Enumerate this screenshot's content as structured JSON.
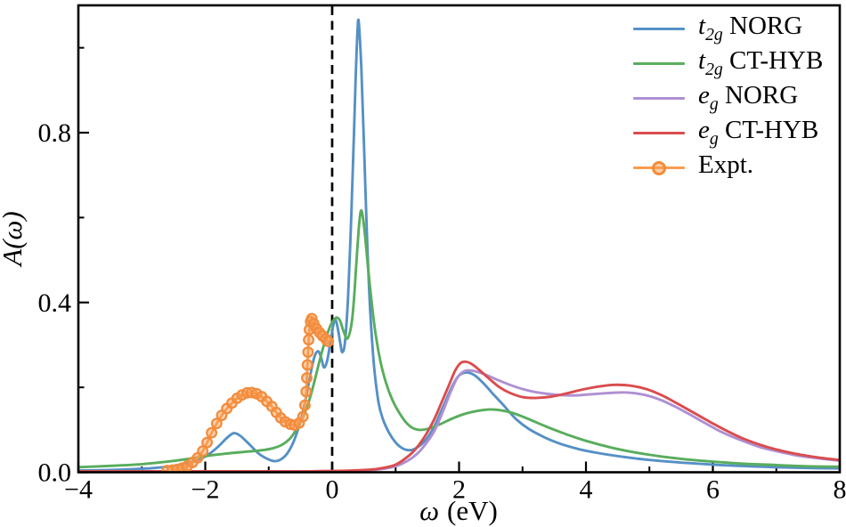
{
  "figure": {
    "title": "",
    "background": "#ffffff",
    "axis_color": "#000000"
  },
  "legend": {
    "position": "upper right",
    "items": [
      {
        "prefix": "t",
        "sub": "2g",
        "rest": " NORG",
        "full": "t2g NORG"
      },
      {
        "prefix": "t",
        "sub": "2g",
        "rest": " CT-HYB",
        "full": "t2g CT-HYB"
      },
      {
        "prefix": "e",
        "sub": "g",
        "rest": " NORG",
        "full": "eg NORG"
      },
      {
        "prefix": "e",
        "sub": "g",
        "rest": " CT-HYB",
        "full": "eg CT-HYB"
      },
      {
        "prefix": "Expt.",
        "sub": "",
        "rest": "",
        "full": "Expt."
      }
    ]
  },
  "chart_data": {
    "type": "line",
    "title": "",
    "xlabel": "ω (eV)",
    "xlabel_parts": {
      "symbol": "ω",
      "unit": "(eV)"
    },
    "ylabel": "A(ω)",
    "xlim": [
      -4,
      8
    ],
    "ylim": [
      0,
      1.1
    ],
    "grid": false,
    "legend_position": "upper right",
    "x_major_ticks": [
      -4,
      -2,
      0,
      2,
      4,
      6,
      8
    ],
    "x_major_labels": [
      "−4",
      "−2",
      "0",
      "2",
      "4",
      "6",
      "8"
    ],
    "x_minor_ticks": [
      -3,
      -1,
      1,
      3,
      5,
      7
    ],
    "y_major_ticks": [
      0,
      0.4,
      0.8
    ],
    "y_major_labels": [
      "0.0",
      "0.4",
      "0.8"
    ],
    "y_minor_ticks": [
      0.2,
      0.6,
      1.0
    ],
    "annotations": [
      {
        "type": "vline",
        "x": 0,
        "style": "dashed",
        "color": "#000000"
      }
    ],
    "series": [
      {
        "id": "t2g-norg",
        "name": "t2g NORG",
        "color": "#5590C5",
        "style": "line",
        "points": [
          [
            -4,
            0.004
          ],
          [
            -3.6,
            0.005
          ],
          [
            -3.2,
            0.007
          ],
          [
            -2.8,
            0.01
          ],
          [
            -2.5,
            0.015
          ],
          [
            -2.3,
            0.021
          ],
          [
            -2.1,
            0.03
          ],
          [
            -1.95,
            0.042
          ],
          [
            -1.8,
            0.06
          ],
          [
            -1.65,
            0.082
          ],
          [
            -1.55,
            0.092
          ],
          [
            -1.45,
            0.086
          ],
          [
            -1.3,
            0.065
          ],
          [
            -1.15,
            0.043
          ],
          [
            -1.0,
            0.03
          ],
          [
            -0.9,
            0.026
          ],
          [
            -0.8,
            0.031
          ],
          [
            -0.7,
            0.046
          ],
          [
            -0.6,
            0.075
          ],
          [
            -0.5,
            0.12
          ],
          [
            -0.42,
            0.17
          ],
          [
            -0.35,
            0.225
          ],
          [
            -0.28,
            0.272
          ],
          [
            -0.22,
            0.285
          ],
          [
            -0.17,
            0.268
          ],
          [
            -0.13,
            0.247
          ],
          [
            -0.08,
            0.262
          ],
          [
            -0.03,
            0.305
          ],
          [
            0.02,
            0.348
          ],
          [
            0.05,
            0.36
          ],
          [
            0.09,
            0.338
          ],
          [
            0.13,
            0.302
          ],
          [
            0.16,
            0.283
          ],
          [
            0.2,
            0.305
          ],
          [
            0.25,
            0.41
          ],
          [
            0.3,
            0.6
          ],
          [
            0.34,
            0.78
          ],
          [
            0.37,
            0.93
          ],
          [
            0.39,
            1.01
          ],
          [
            0.41,
            1.065
          ],
          [
            0.43,
            1.04
          ],
          [
            0.46,
            0.95
          ],
          [
            0.5,
            0.78
          ],
          [
            0.55,
            0.55
          ],
          [
            0.6,
            0.38
          ],
          [
            0.66,
            0.25
          ],
          [
            0.73,
            0.165
          ],
          [
            0.8,
            0.125
          ],
          [
            0.9,
            0.092
          ],
          [
            1.0,
            0.07
          ],
          [
            1.1,
            0.057
          ],
          [
            1.2,
            0.052
          ],
          [
            1.3,
            0.055
          ],
          [
            1.45,
            0.072
          ],
          [
            1.6,
            0.105
          ],
          [
            1.75,
            0.155
          ],
          [
            1.9,
            0.205
          ],
          [
            2.0,
            0.228
          ],
          [
            2.12,
            0.235
          ],
          [
            2.25,
            0.228
          ],
          [
            2.4,
            0.207
          ],
          [
            2.55,
            0.182
          ],
          [
            2.7,
            0.158
          ],
          [
            2.9,
            0.125
          ],
          [
            3.1,
            0.102
          ],
          [
            3.35,
            0.082
          ],
          [
            3.6,
            0.067
          ],
          [
            3.9,
            0.054
          ],
          [
            4.2,
            0.045
          ],
          [
            4.6,
            0.036
          ],
          [
            5.0,
            0.029
          ],
          [
            5.4,
            0.024
          ],
          [
            5.9,
            0.019
          ],
          [
            6.4,
            0.015
          ],
          [
            7.0,
            0.012
          ],
          [
            7.5,
            0.01
          ],
          [
            8.0,
            0.009
          ]
        ]
      },
      {
        "id": "t2g-cthyb",
        "name": "t2g CT-HYB",
        "color": "#58AD5C",
        "style": "line",
        "points": [
          [
            -4,
            0.012
          ],
          [
            -3.5,
            0.015
          ],
          [
            -3.0,
            0.019
          ],
          [
            -2.6,
            0.025
          ],
          [
            -2.2,
            0.033
          ],
          [
            -1.9,
            0.04
          ],
          [
            -1.6,
            0.045
          ],
          [
            -1.3,
            0.049
          ],
          [
            -1.1,
            0.052
          ],
          [
            -0.95,
            0.056
          ],
          [
            -0.8,
            0.064
          ],
          [
            -0.65,
            0.082
          ],
          [
            -0.5,
            0.118
          ],
          [
            -0.4,
            0.152
          ],
          [
            -0.3,
            0.202
          ],
          [
            -0.2,
            0.262
          ],
          [
            -0.1,
            0.315
          ],
          [
            -0.02,
            0.348
          ],
          [
            0.06,
            0.364
          ],
          [
            0.12,
            0.358
          ],
          [
            0.18,
            0.332
          ],
          [
            0.24,
            0.315
          ],
          [
            0.3,
            0.345
          ],
          [
            0.34,
            0.4
          ],
          [
            0.38,
            0.49
          ],
          [
            0.42,
            0.575
          ],
          [
            0.45,
            0.615
          ],
          [
            0.48,
            0.605
          ],
          [
            0.52,
            0.555
          ],
          [
            0.57,
            0.475
          ],
          [
            0.63,
            0.39
          ],
          [
            0.69,
            0.32
          ],
          [
            0.76,
            0.262
          ],
          [
            0.85,
            0.21
          ],
          [
            0.95,
            0.17
          ],
          [
            1.05,
            0.142
          ],
          [
            1.15,
            0.12
          ],
          [
            1.25,
            0.106
          ],
          [
            1.36,
            0.1
          ],
          [
            1.5,
            0.102
          ],
          [
            1.7,
            0.113
          ],
          [
            1.9,
            0.127
          ],
          [
            2.1,
            0.138
          ],
          [
            2.3,
            0.145
          ],
          [
            2.5,
            0.148
          ],
          [
            2.7,
            0.145
          ],
          [
            2.9,
            0.137
          ],
          [
            3.1,
            0.125
          ],
          [
            3.4,
            0.106
          ],
          [
            3.7,
            0.089
          ],
          [
            4.0,
            0.074
          ],
          [
            4.4,
            0.058
          ],
          [
            4.8,
            0.046
          ],
          [
            5.2,
            0.037
          ],
          [
            5.6,
            0.03
          ],
          [
            6.0,
            0.025
          ],
          [
            6.5,
            0.02
          ],
          [
            7.0,
            0.017
          ],
          [
            7.5,
            0.014
          ],
          [
            8.0,
            0.013
          ]
        ]
      },
      {
        "id": "eg-norg",
        "name": "eg NORG",
        "color": "#AE90D2",
        "style": "line",
        "points": [
          [
            -4,
            0.002
          ],
          [
            -3,
            0.002
          ],
          [
            -2,
            0.002
          ],
          [
            -1,
            0.002
          ],
          [
            -0.5,
            0.002
          ],
          [
            0,
            0.003
          ],
          [
            0.3,
            0.003
          ],
          [
            0.6,
            0.005
          ],
          [
            0.8,
            0.008
          ],
          [
            1.0,
            0.014
          ],
          [
            1.2,
            0.028
          ],
          [
            1.35,
            0.045
          ],
          [
            1.5,
            0.072
          ],
          [
            1.62,
            0.1
          ],
          [
            1.75,
            0.145
          ],
          [
            1.87,
            0.19
          ],
          [
            1.97,
            0.222
          ],
          [
            2.07,
            0.237
          ],
          [
            2.16,
            0.24
          ],
          [
            2.3,
            0.236
          ],
          [
            2.45,
            0.228
          ],
          [
            2.6,
            0.218
          ],
          [
            2.8,
            0.206
          ],
          [
            3.0,
            0.196
          ],
          [
            3.2,
            0.189
          ],
          [
            3.5,
            0.183
          ],
          [
            3.8,
            0.181
          ],
          [
            4.1,
            0.184
          ],
          [
            4.4,
            0.187
          ],
          [
            4.65,
            0.188
          ],
          [
            4.9,
            0.183
          ],
          [
            5.15,
            0.172
          ],
          [
            5.4,
            0.155
          ],
          [
            5.65,
            0.135
          ],
          [
            5.9,
            0.114
          ],
          [
            6.15,
            0.094
          ],
          [
            6.45,
            0.075
          ],
          [
            6.75,
            0.059
          ],
          [
            7.05,
            0.048
          ],
          [
            7.35,
            0.039
          ],
          [
            7.65,
            0.033
          ],
          [
            8.0,
            0.027
          ]
        ]
      },
      {
        "id": "eg-cthyb",
        "name": "eg CT-HYB",
        "color": "#DB4C4E",
        "style": "line",
        "points": [
          [
            -4,
            0.002
          ],
          [
            -3,
            0.002
          ],
          [
            -2,
            0.002
          ],
          [
            -1,
            0.002
          ],
          [
            -0.5,
            0.002
          ],
          [
            0,
            0.003
          ],
          [
            0.3,
            0.004
          ],
          [
            0.6,
            0.006
          ],
          [
            0.8,
            0.01
          ],
          [
            1.0,
            0.018
          ],
          [
            1.15,
            0.032
          ],
          [
            1.3,
            0.052
          ],
          [
            1.45,
            0.082
          ],
          [
            1.6,
            0.122
          ],
          [
            1.72,
            0.163
          ],
          [
            1.84,
            0.205
          ],
          [
            1.94,
            0.24
          ],
          [
            2.03,
            0.258
          ],
          [
            2.12,
            0.26
          ],
          [
            2.22,
            0.253
          ],
          [
            2.35,
            0.237
          ],
          [
            2.5,
            0.217
          ],
          [
            2.65,
            0.199
          ],
          [
            2.8,
            0.187
          ],
          [
            3.0,
            0.177
          ],
          [
            3.2,
            0.175
          ],
          [
            3.45,
            0.178
          ],
          [
            3.7,
            0.186
          ],
          [
            3.95,
            0.195
          ],
          [
            4.2,
            0.202
          ],
          [
            4.45,
            0.206
          ],
          [
            4.7,
            0.204
          ],
          [
            4.95,
            0.196
          ],
          [
            5.2,
            0.181
          ],
          [
            5.45,
            0.161
          ],
          [
            5.7,
            0.14
          ],
          [
            5.95,
            0.119
          ],
          [
            6.2,
            0.099
          ],
          [
            6.5,
            0.078
          ],
          [
            6.8,
            0.062
          ],
          [
            7.1,
            0.05
          ],
          [
            7.4,
            0.041
          ],
          [
            7.7,
            0.034
          ],
          [
            8.0,
            0.029
          ]
        ]
      },
      {
        "id": "expt",
        "name": "Expt.",
        "color": "#FA9C50",
        "marker_edge": "#F28C3C",
        "style": "line+markers",
        "marker": "circle",
        "points": [
          [
            -2.6,
            0.004
          ],
          [
            -2.52,
            0.005
          ],
          [
            -2.44,
            0.007
          ],
          [
            -2.36,
            0.01
          ],
          [
            -2.28,
            0.015
          ],
          [
            -2.2,
            0.023
          ],
          [
            -2.12,
            0.034
          ],
          [
            -2.04,
            0.05
          ],
          [
            -1.97,
            0.07
          ],
          [
            -1.9,
            0.093
          ],
          [
            -1.82,
            0.115
          ],
          [
            -1.74,
            0.134
          ],
          [
            -1.66,
            0.15
          ],
          [
            -1.58,
            0.163
          ],
          [
            -1.5,
            0.174
          ],
          [
            -1.42,
            0.182
          ],
          [
            -1.34,
            0.187
          ],
          [
            -1.27,
            0.188
          ],
          [
            -1.19,
            0.185
          ],
          [
            -1.11,
            0.178
          ],
          [
            -1.03,
            0.167
          ],
          [
            -0.95,
            0.155
          ],
          [
            -0.88,
            0.141
          ],
          [
            -0.81,
            0.128
          ],
          [
            -0.74,
            0.119
          ],
          [
            -0.66,
            0.113
          ],
          [
            -0.59,
            0.111
          ],
          [
            -0.52,
            0.116
          ],
          [
            -0.46,
            0.131
          ],
          [
            -0.43,
            0.158
          ],
          [
            -0.41,
            0.19
          ],
          [
            -0.4,
            0.222
          ],
          [
            -0.39,
            0.253
          ],
          [
            -0.38,
            0.283
          ],
          [
            -0.37,
            0.312
          ],
          [
            -0.36,
            0.336
          ],
          [
            -0.34,
            0.355
          ],
          [
            -0.32,
            0.362
          ],
          [
            -0.29,
            0.35
          ],
          [
            -0.25,
            0.339
          ],
          [
            -0.2,
            0.329
          ],
          [
            -0.15,
            0.321
          ],
          [
            -0.1,
            0.314
          ],
          [
            -0.06,
            0.308
          ]
        ]
      }
    ]
  }
}
